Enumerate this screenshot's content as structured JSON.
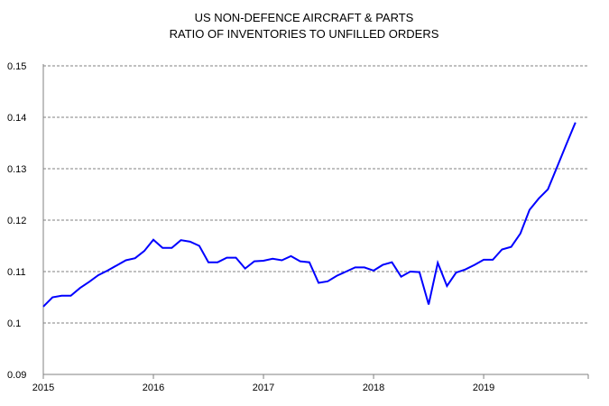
{
  "chart_data": {
    "type": "line",
    "title": "US NON-DEFENCE AIRCRAFT & PARTS",
    "subtitle": "RATIO OF INVENTORIES TO UNFILLED ORDERS",
    "xlabel": "",
    "ylabel": "",
    "ylim": [
      0.09,
      0.15
    ],
    "xlim": [
      2015,
      2019.95
    ],
    "yticks": [
      "0.09",
      "0.1",
      "0.11",
      "0.12",
      "0.13",
      "0.14",
      "0.15"
    ],
    "xticks": [
      "2015",
      "2016",
      "2017",
      "2018",
      "2019"
    ],
    "grid": "horizontal dashed",
    "line_color": "#0000ff",
    "x_start": "2015-01",
    "frequency": "monthly",
    "series": [
      {
        "values": [
          0.1032,
          0.105,
          0.1053,
          0.1053,
          0.1068,
          0.108,
          0.1093,
          0.1102,
          0.1112,
          0.1122,
          0.1126,
          0.114,
          0.1162,
          0.1146,
          0.1146,
          0.1161,
          0.1158,
          0.115,
          0.1118,
          0.1118,
          0.1127,
          0.1127,
          0.1106,
          0.112,
          0.1121,
          0.1125,
          0.1122,
          0.113,
          0.112,
          0.1118,
          0.1078,
          0.1081,
          0.1092,
          0.11,
          0.1108,
          0.1108,
          0.1102,
          0.1113,
          0.1118,
          0.109,
          0.11,
          0.1099,
          0.1036,
          0.1117,
          0.1072,
          0.1098,
          0.1104,
          0.1113,
          0.1123,
          0.1123,
          0.1143,
          0.1148,
          0.1174,
          0.122,
          0.1242,
          0.126,
          0.1303,
          0.1347,
          0.139
        ]
      }
    ]
  }
}
